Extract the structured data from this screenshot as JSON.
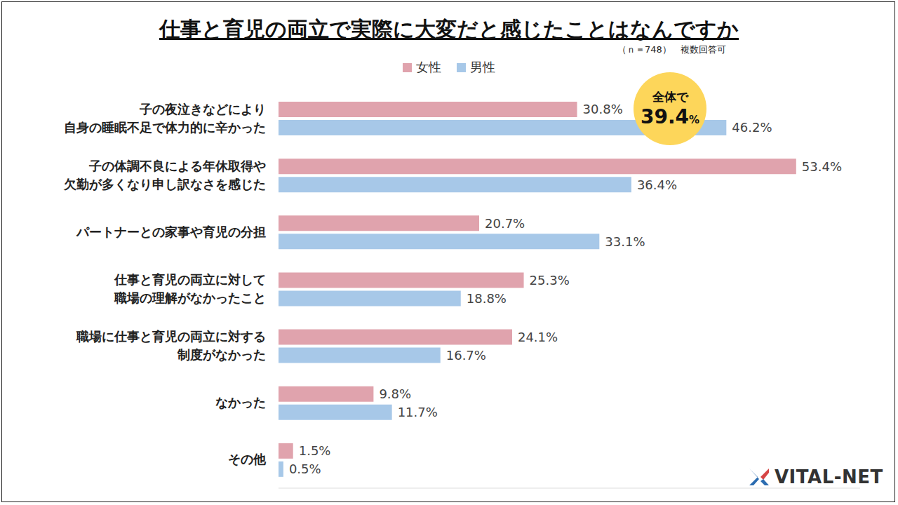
{
  "chart_data": {
    "type": "bar",
    "orientation": "horizontal",
    "title": "仕事と育児の両立で実際に大変だと感じたことはなんですか",
    "subtitle": "（ｎ＝748）　複数回答可",
    "categories": [
      "子の夜泣きなどにより\n自身の睡眠不足で体力的に辛かった",
      "子の体調不良による年休取得や\n欠勤が多くなり申し訳なさを感じた",
      "パートナーとの家事や育児の分担",
      "仕事と育児の両立に対して\n職場の理解がなかったこと",
      "職場に仕事と育児の両立に対する\n制度がなかった",
      "なかった",
      "その他"
    ],
    "series": [
      {
        "name": "女性",
        "color": "#e0a3ad",
        "values": [
          30.8,
          53.4,
          20.7,
          25.3,
          24.1,
          9.8,
          1.5
        ],
        "value_labels": [
          "30.8%",
          "53.4%",
          "20.7%",
          "25.3%",
          "24.1%",
          "9.8%",
          "1.5%"
        ]
      },
      {
        "name": "男性",
        "color": "#a7c8e8",
        "values": [
          46.2,
          36.4,
          33.1,
          18.8,
          16.7,
          11.7,
          0.5
        ],
        "value_labels": [
          "46.2%",
          "36.4%",
          "33.1%",
          "18.8%",
          "16.7%",
          "11.7%",
          "0.5%"
        ]
      }
    ],
    "xlim": [
      0,
      60
    ],
    "legend": "top",
    "data_labels": true,
    "tick_labels": "y",
    "grid": false,
    "annotations": [
      {
        "text": "全体で",
        "value": 39.4,
        "label": "39.4%",
        "color": "#fdd65a"
      }
    ],
    "logo": "VITAL-NET"
  }
}
